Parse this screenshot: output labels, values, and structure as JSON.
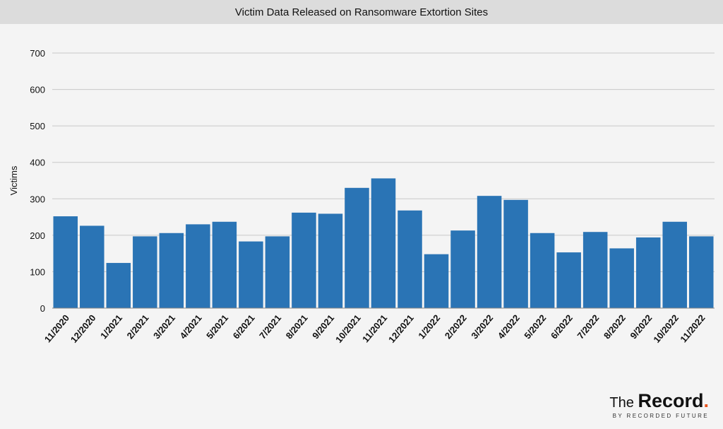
{
  "chart_data": {
    "type": "bar",
    "title": "Victim Data Released on Ransomware Extortion Sites",
    "xlabel": "",
    "ylabel": "Victims",
    "ylim": [
      0,
      700
    ],
    "yticks": [
      0,
      100,
      200,
      300,
      400,
      500,
      600,
      700
    ],
    "grid": true,
    "bar_color": "#2a74b5",
    "categories": [
      "11/2020",
      "12/2020",
      "1/2021",
      "2/2021",
      "3/2021",
      "4/2021",
      "5/2021",
      "6/2021",
      "7/2021",
      "8/2021",
      "9/2021",
      "10/2021",
      "11/2021",
      "12/2021",
      "1/2022",
      "2/2022",
      "3/2022",
      "4/2022",
      "5/2022",
      "6/2022",
      "7/2022",
      "8/2022",
      "9/2022",
      "10/2022",
      "11/2022"
    ],
    "values": [
      252,
      226,
      124,
      197,
      206,
      230,
      237,
      183,
      197,
      262,
      259,
      330,
      356,
      268,
      148,
      213,
      308,
      297,
      206,
      153,
      209,
      164,
      194,
      237,
      197
    ]
  },
  "brand": {
    "the": "The",
    "record": "Record",
    "dot": ".",
    "tagline": "BY RECORDED FUTURE",
    "accent_color": "#e8541e"
  }
}
